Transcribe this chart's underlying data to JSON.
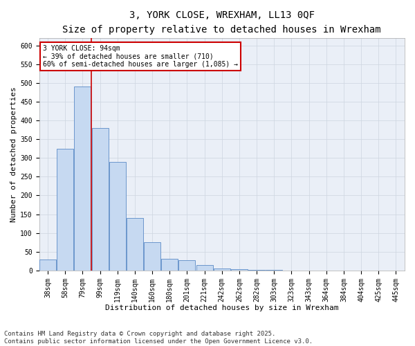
{
  "title_line1": "3, YORK CLOSE, WREXHAM, LL13 0QF",
  "title_line2": "Size of property relative to detached houses in Wrexham",
  "xlabel": "Distribution of detached houses by size in Wrexham",
  "ylabel": "Number of detached properties",
  "bar_labels": [
    "38sqm",
    "58sqm",
    "79sqm",
    "99sqm",
    "119sqm",
    "140sqm",
    "160sqm",
    "180sqm",
    "201sqm",
    "221sqm",
    "242sqm",
    "262sqm",
    "282sqm",
    "303sqm",
    "323sqm",
    "343sqm",
    "364sqm",
    "384sqm",
    "404sqm",
    "425sqm",
    "445sqm"
  ],
  "bar_values": [
    30,
    325,
    490,
    380,
    290,
    140,
    75,
    32,
    28,
    14,
    6,
    3,
    2,
    1,
    0,
    0,
    0,
    0,
    0,
    0,
    0
  ],
  "bar_color": "#c6d9f1",
  "bar_edge_color": "#5a8ac6",
  "vline_color": "#cc0000",
  "annotation_text": "3 YORK CLOSE: 94sqm\n← 39% of detached houses are smaller (710)\n60% of semi-detached houses are larger (1,085) →",
  "annotation_box_color": "#cc0000",
  "ylim": [
    0,
    620
  ],
  "yticks": [
    0,
    50,
    100,
    150,
    200,
    250,
    300,
    350,
    400,
    450,
    500,
    550,
    600
  ],
  "footer": "Contains HM Land Registry data © Crown copyright and database right 2025.\nContains public sector information licensed under the Open Government Licence v3.0.",
  "background_color": "#ffffff",
  "grid_color": "#cdd5e0",
  "title_fontsize": 10,
  "subtitle_fontsize": 9,
  "axis_label_fontsize": 8,
  "tick_fontsize": 7,
  "footer_fontsize": 6.5
}
